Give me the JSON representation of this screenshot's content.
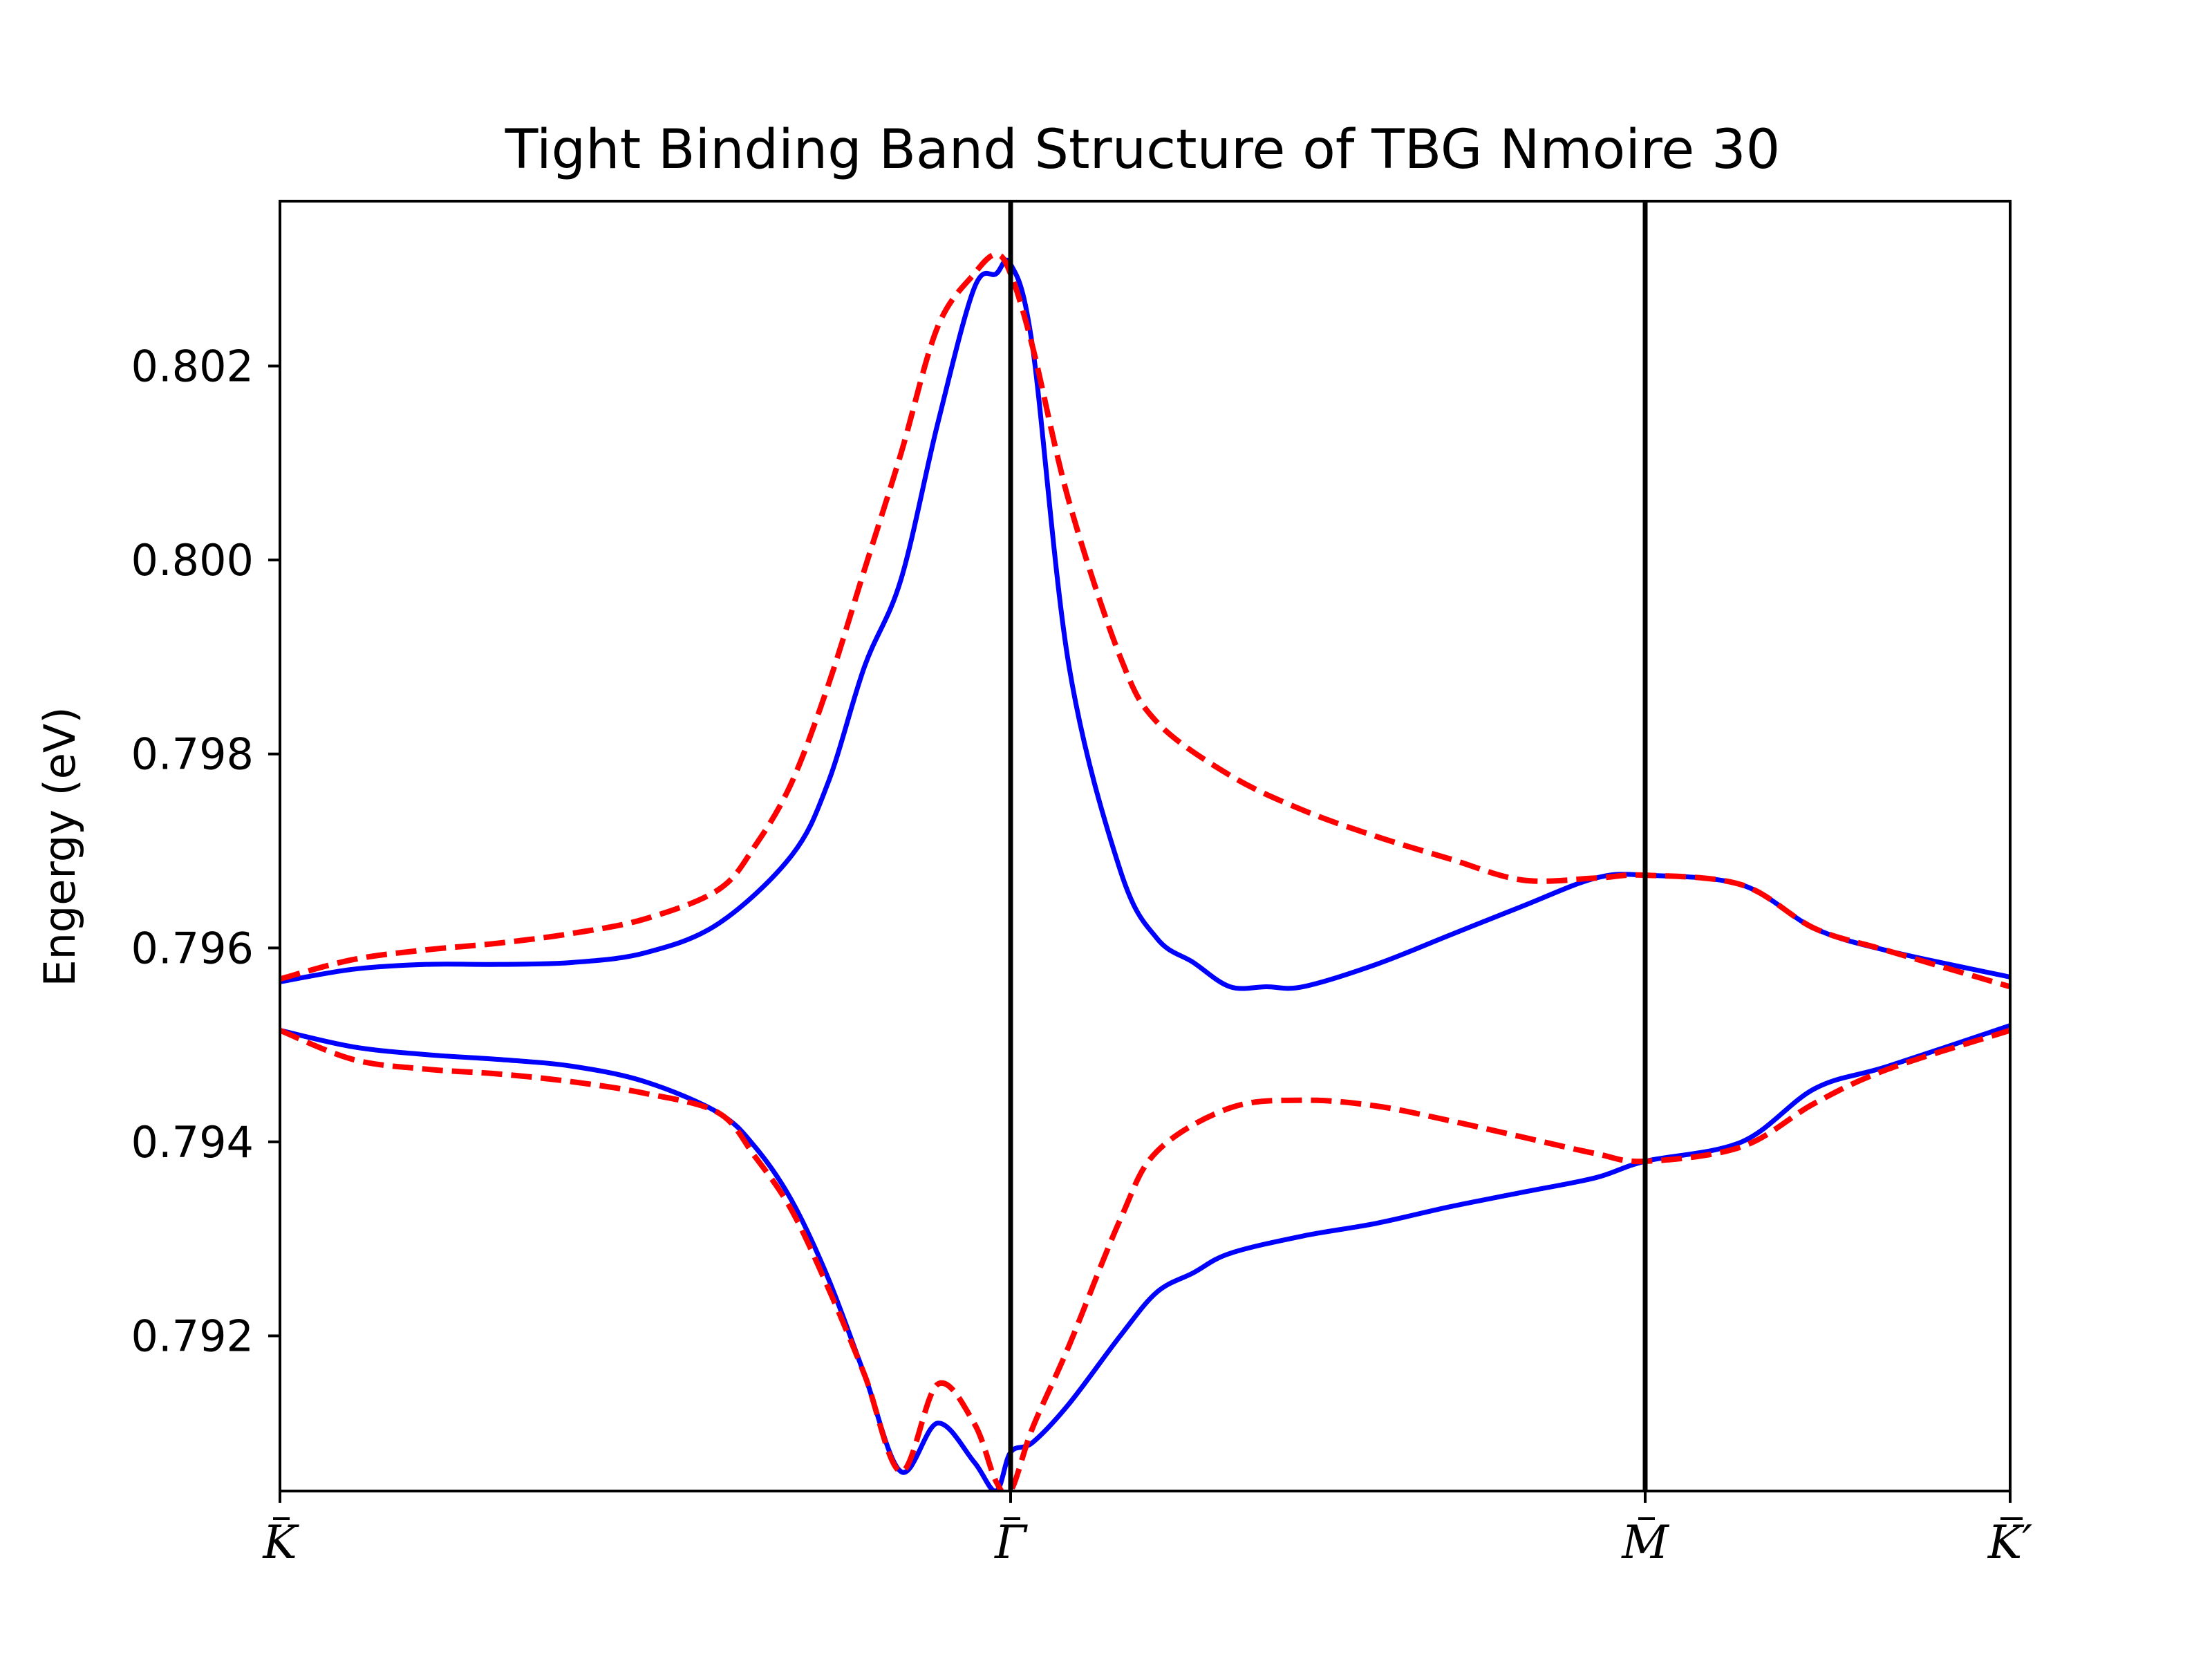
{
  "chart_data": {
    "type": "line",
    "title": "Tight Binding Band Structure of TBG Nmoire 30",
    "xlabel": "",
    "ylabel": "Engergy (eV)",
    "ylim": [
      0.7904,
      0.8037
    ],
    "xlim": [
      0,
      3
    ],
    "y_ticks": [
      0.792,
      0.794,
      0.796,
      0.798,
      0.8,
      0.802
    ],
    "y_tick_labels": [
      "0.792",
      "0.794",
      "0.796",
      "0.798",
      "0.800",
      "0.802"
    ],
    "x_ticks": [
      {
        "pos": 0,
        "label": "K"
      },
      {
        "pos": 1,
        "label": "Γ"
      },
      {
        "pos": 1.868,
        "label": "M"
      },
      {
        "pos": 2.367,
        "label": "K′"
      }
    ],
    "vlines_at": [
      1,
      1.868
    ],
    "grid": false,
    "legend": "none",
    "colors": {
      "solid": "#0000ff",
      "dashed": "#ff0000",
      "vline": "#000000"
    },
    "series": [
      {
        "style": "solid",
        "x": [
          0,
          0.1,
          0.2,
          0.3,
          0.4,
          0.5,
          0.6,
          0.7,
          0.75,
          0.8,
          0.85,
          0.9,
          0.95,
          0.98,
          1.0,
          1.03,
          1.08,
          1.15,
          1.2,
          1.25,
          1.3,
          1.35,
          1.4,
          1.5,
          1.6,
          1.7,
          1.8,
          1.868,
          2.0,
          2.1,
          2.2,
          2.367
        ],
        "y": [
          0.79565,
          0.79578,
          0.79583,
          0.79583,
          0.79585,
          0.79595,
          0.79625,
          0.79695,
          0.7977,
          0.7989,
          0.7998,
          0.8014,
          0.8028,
          0.80295,
          0.80305,
          0.8022,
          0.7989,
          0.7968,
          0.7961,
          0.79585,
          0.7956,
          0.7956,
          0.7956,
          0.79583,
          0.79613,
          0.79643,
          0.79672,
          0.79675,
          0.79665,
          0.7962,
          0.79597,
          0.7957
        ]
      },
      {
        "style": "solid",
        "x": [
          0,
          0.1,
          0.2,
          0.3,
          0.4,
          0.5,
          0.6,
          0.65,
          0.7,
          0.75,
          0.8,
          0.85,
          0.9,
          0.95,
          0.98,
          1.0,
          1.03,
          1.08,
          1.15,
          1.2,
          1.25,
          1.3,
          1.4,
          1.5,
          1.6,
          1.7,
          1.8,
          1.868,
          2.0,
          2.1,
          2.2,
          2.367
        ],
        "y": [
          0.79515,
          0.79498,
          0.7949,
          0.79485,
          0.79478,
          0.79462,
          0.7943,
          0.79395,
          0.7934,
          0.7926,
          0.7916,
          0.7906,
          0.7911,
          0.7907,
          0.7904,
          0.7908,
          0.7909,
          0.7913,
          0.792,
          0.79245,
          0.79265,
          0.79285,
          0.79303,
          0.79316,
          0.79333,
          0.79348,
          0.79363,
          0.7938,
          0.794,
          0.79455,
          0.79478,
          0.7952
        ]
      },
      {
        "style": "dashed",
        "x": [
          0,
          0.1,
          0.2,
          0.3,
          0.4,
          0.5,
          0.6,
          0.65,
          0.7,
          0.75,
          0.8,
          0.85,
          0.9,
          0.95,
          0.98,
          1.0,
          1.03,
          1.08,
          1.15,
          1.2,
          1.3,
          1.4,
          1.5,
          1.6,
          1.7,
          1.8,
          1.868,
          2.0,
          2.1,
          2.2,
          2.367
        ],
        "y": [
          0.79568,
          0.79588,
          0.79598,
          0.79605,
          0.79615,
          0.7963,
          0.7966,
          0.79705,
          0.7977,
          0.7987,
          0.7999,
          0.8011,
          0.8024,
          0.80295,
          0.80315,
          0.80295,
          0.8022,
          0.8006,
          0.799,
          0.79833,
          0.79778,
          0.79742,
          0.79715,
          0.79692,
          0.7967,
          0.79672,
          0.79675,
          0.79665,
          0.7962,
          0.79597,
          0.7956
        ]
      },
      {
        "style": "dashed",
        "x": [
          0,
          0.1,
          0.2,
          0.3,
          0.4,
          0.5,
          0.6,
          0.65,
          0.7,
          0.75,
          0.8,
          0.85,
          0.9,
          0.95,
          0.98,
          1.0,
          1.03,
          1.08,
          1.15,
          1.2,
          1.3,
          1.4,
          1.5,
          1.6,
          1.7,
          1.8,
          1.868,
          2.0,
          2.1,
          2.2,
          2.367
        ],
        "y": [
          0.79515,
          0.79485,
          0.79475,
          0.7947,
          0.79462,
          0.7945,
          0.7943,
          0.79385,
          0.7933,
          0.7925,
          0.7916,
          0.7906,
          0.7915,
          0.7911,
          0.7905,
          0.7904,
          0.79105,
          0.7919,
          0.7932,
          0.7939,
          0.79435,
          0.79443,
          0.79437,
          0.79422,
          0.79405,
          0.79388,
          0.7938,
          0.79395,
          0.7944,
          0.79475,
          0.79515
        ]
      }
    ]
  }
}
